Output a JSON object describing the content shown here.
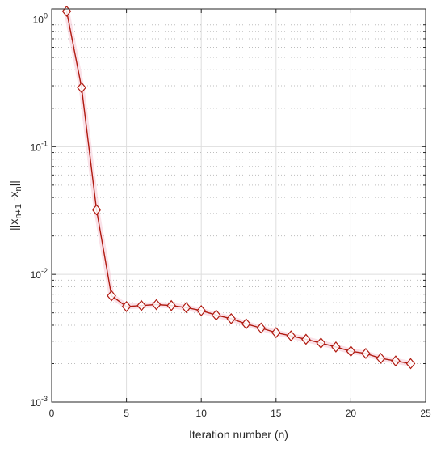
{
  "chart_data": {
    "type": "line",
    "title": "",
    "xlabel": "Iteration number (n)",
    "ylabel_parts": {
      "base1": "||x",
      "sub1": "n+1",
      "mid": " -x",
      "sub2": "n",
      "end": "||"
    },
    "xlim": [
      0,
      25
    ],
    "ylim": [
      0.001,
      1.2
    ],
    "yscale": "log",
    "grid": true,
    "minor_grid": true,
    "x_ticks": [
      0,
      5,
      10,
      15,
      20,
      25
    ],
    "x_tick_labels": [
      "0",
      "5",
      "10",
      "15",
      "20",
      "25"
    ],
    "y_ticks": [
      {
        "value": 1,
        "base": "10",
        "exp": "0"
      },
      {
        "value": 0.1,
        "base": "10",
        "exp": "-1"
      },
      {
        "value": 0.01,
        "base": "10",
        "exp": "-2"
      },
      {
        "value": 0.001,
        "base": "10",
        "exp": "-3"
      }
    ],
    "series": [
      {
        "marker": "diamond",
        "color": "#b01a10",
        "halo_color": "#f6c9d6",
        "x": [
          1,
          2,
          3,
          4,
          5,
          6,
          7,
          8,
          9,
          10,
          11,
          12,
          13,
          14,
          15,
          16,
          17,
          18,
          19,
          20,
          21,
          22,
          23,
          24
        ],
        "y": [
          1.15,
          0.29,
          0.032,
          0.0068,
          0.0056,
          0.0057,
          0.0058,
          0.0057,
          0.0055,
          0.0052,
          0.0048,
          0.0045,
          0.0041,
          0.0038,
          0.0035,
          0.0033,
          0.0031,
          0.0029,
          0.0027,
          0.0025,
          0.0024,
          0.0022,
          0.0021,
          0.002
        ]
      }
    ]
  }
}
